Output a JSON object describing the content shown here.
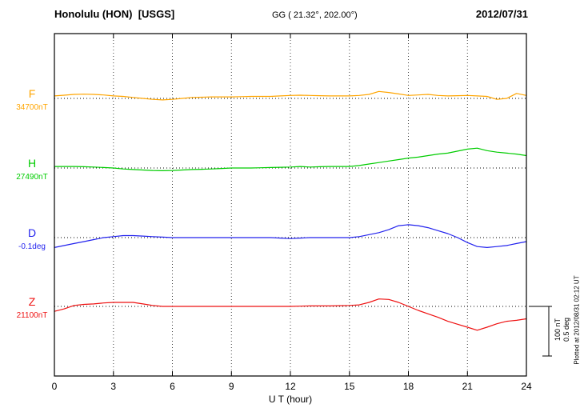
{
  "header": {
    "station": "Honolulu (HON)  [USGS]",
    "coords": "GG ( 21.32°, 202.00°)",
    "date": "2012/07/31"
  },
  "footer": {
    "xlabel": "U T (hour)"
  },
  "side": {
    "scale_nt": "100 nT",
    "scale_deg": "0.5 deg",
    "plotted_at": "Plotted at 2012/08/31 02:12 UT"
  },
  "chart_data": {
    "type": "line",
    "title": "Honolulu (HON) [USGS] magnetogram 2012/07/31",
    "xlabel": "U T (hour)",
    "x_range": [
      0,
      24
    ],
    "x_ticks": [
      0,
      3,
      6,
      9,
      12,
      15,
      18,
      21,
      24
    ],
    "grid": "dotted vertical lines every 3 hours; dotted horizontal baseline per trace",
    "legend_position": "left margin, one colored letter per trace",
    "scale": {
      "nT_per_div": 100,
      "deg_per_div": 0.5
    },
    "x": [
      0,
      0.5,
      1,
      1.5,
      2,
      2.5,
      3,
      3.5,
      4,
      4.5,
      5,
      5.5,
      6,
      6.5,
      7,
      7.5,
      8,
      8.5,
      9,
      9.5,
      10,
      10.5,
      11,
      11.5,
      12,
      12.5,
      13,
      13.5,
      14,
      14.5,
      15,
      15.5,
      16,
      16.5,
      17,
      17.5,
      18,
      18.5,
      19,
      19.5,
      20,
      20.5,
      21,
      21.5,
      22,
      22.5,
      23,
      23.5,
      24
    ],
    "series": [
      {
        "name": "F",
        "color": "#ffa500",
        "unit": "nT",
        "baseline_label": "34700nT",
        "baseline_value": 34700,
        "values": [
          5,
          6.5,
          8,
          8.5,
          8,
          7,
          5,
          4,
          2,
          0,
          -2,
          -3,
          -2,
          0,
          2,
          2.5,
          3,
          3,
          3,
          3.5,
          4,
          4,
          4,
          5,
          6,
          6.5,
          6,
          5.5,
          5,
          5,
          5,
          6,
          8,
          14,
          12,
          9,
          6,
          7,
          8,
          6,
          5,
          5.5,
          6,
          5,
          4,
          -2,
          0,
          10,
          6
        ]
      },
      {
        "name": "H",
        "color": "#00cc00",
        "unit": "nT",
        "baseline_label": "27490nT",
        "baseline_value": 27490,
        "values": [
          3,
          3,
          3,
          2.5,
          2,
          1,
          0,
          -2,
          -3,
          -4,
          -5,
          -5.5,
          -5,
          -4,
          -3,
          -2.5,
          -2,
          -1,
          0,
          0,
          0,
          0.5,
          1,
          1.5,
          2,
          3,
          2,
          2.5,
          3,
          3,
          3,
          5,
          8,
          11,
          14,
          17,
          20,
          22,
          25,
          28,
          30,
          34,
          38,
          40,
          35,
          32,
          30,
          28,
          25
        ]
      },
      {
        "name": "D",
        "color": "#2222ee",
        "unit": "deg",
        "baseline_label": "-0.1deg",
        "baseline_value": -0.1,
        "values": [
          -0.1,
          -0.08,
          -0.06,
          -0.04,
          -0.02,
          0,
          0.01,
          0.02,
          0.02,
          0.015,
          0.01,
          0.005,
          0,
          0,
          0,
          0,
          0,
          0,
          0,
          0,
          0,
          0,
          0,
          -0.005,
          -0.01,
          -0.005,
          0,
          0,
          0,
          0,
          0,
          0.01,
          0.03,
          0.05,
          0.08,
          0.12,
          0.13,
          0.12,
          0.1,
          0.07,
          0.04,
          0,
          -0.05,
          -0.09,
          -0.1,
          -0.09,
          -0.08,
          -0.06,
          -0.04
        ]
      },
      {
        "name": "Z",
        "color": "#ee1111",
        "unit": "nT",
        "baseline_label": "21100nT",
        "baseline_value": 21100,
        "values": [
          -10,
          -5,
          2,
          4,
          5,
          7,
          8,
          8,
          8,
          5,
          2,
          0,
          0,
          0,
          0,
          0,
          0,
          0,
          0,
          0,
          0,
          0,
          0,
          0,
          0,
          0.5,
          1,
          1,
          1,
          1.5,
          2,
          3,
          8,
          15,
          14,
          8,
          0,
          -8,
          -15,
          -22,
          -30,
          -36,
          -42,
          -48,
          -42,
          -35,
          -30,
          -28,
          -25
        ]
      }
    ]
  }
}
